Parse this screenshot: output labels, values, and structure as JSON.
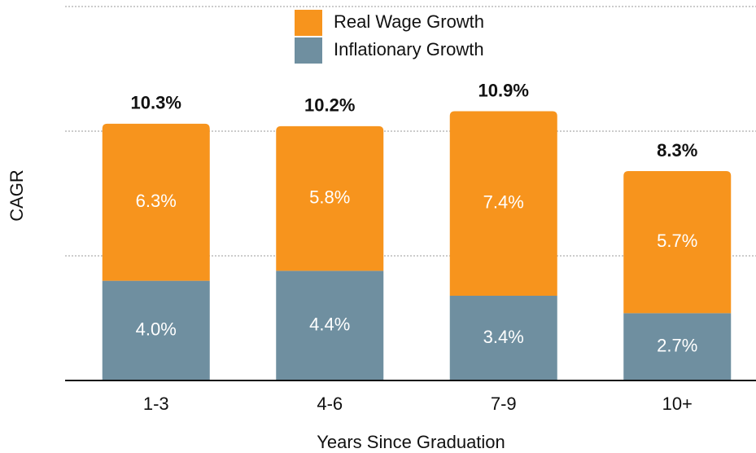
{
  "chart_data": {
    "type": "stacked_bar",
    "x_label": "Years Since Graduation",
    "y_label": "CAGR",
    "categories": [
      "1-3",
      "4-6",
      "7-9",
      "10+"
    ],
    "series": [
      {
        "name": "Inflationary Growth",
        "color": "#6f8fa0",
        "values": [
          4.0,
          4.4,
          3.4,
          2.7
        ],
        "value_labels": [
          "4.0%",
          "4.4%",
          "3.4%",
          "2.7%"
        ]
      },
      {
        "name": "Real Wage Growth",
        "color": "#f7941d",
        "values": [
          6.3,
          5.8,
          7.4,
          5.7
        ],
        "value_labels": [
          "6.3%",
          "5.8%",
          "7.4%",
          "5.7%"
        ]
      }
    ],
    "totals": [
      10.3,
      10.2,
      10.9,
      8.3
    ],
    "total_labels": [
      "10.3%",
      "10.2%",
      "10.9%",
      "8.3%"
    ],
    "ylim": [
      0,
      15
    ],
    "yticks": [
      0,
      5,
      10,
      15
    ],
    "grid": true
  }
}
